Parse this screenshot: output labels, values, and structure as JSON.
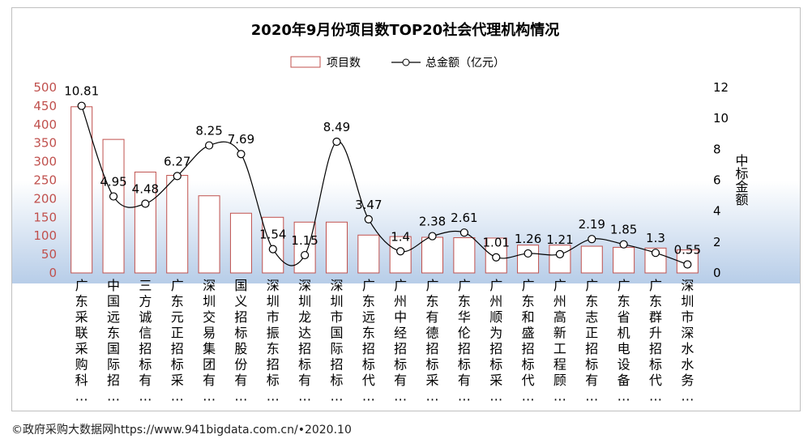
{
  "chart_data": {
    "type": "bar-line",
    "title": "2020年9月份项目数TOP20社会代理机构情况",
    "legend": {
      "position": "top-center",
      "bar_label": "项目数",
      "line_label": "总金额（亿元）"
    },
    "y_left": {
      "min": 0,
      "max": 500,
      "ticks": [
        0,
        50,
        100,
        150,
        200,
        250,
        300,
        350,
        400,
        450,
        500
      ],
      "color": "#c0504d"
    },
    "y_right": {
      "min": 0,
      "max": 12,
      "ticks": [
        0,
        2,
        4,
        6,
        8,
        10,
        12
      ],
      "label": "中标金额"
    },
    "categories": [
      "广东采联采购科…",
      "中国远东国际招…",
      "三方诚信招标有…",
      "广东元正招标采…",
      "深圳交易集团有…",
      "国义招标股份有…",
      "深圳市振东招标…",
      "深圳龙达招标有…",
      "深圳市国际招标…",
      "广东远东招标代…",
      "广州中经招标有…",
      "广东有德招标采…",
      "广东华伦招标有…",
      "广州顺为招标采…",
      "广东和盛招标代…",
      "广州高新工程顾…",
      "广东志正招标有…",
      "广东省机电设备…",
      "广东群升招标代…",
      "深圳市深水水务…"
    ],
    "series": [
      {
        "name": "项目数",
        "kind": "bar",
        "values": [
          448,
          360,
          272,
          263,
          208,
          161,
          150,
          137,
          137,
          102,
          98,
          96,
          95,
          94,
          75,
          75,
          72,
          69,
          67,
          62
        ]
      },
      {
        "name": "总金额（亿元）",
        "kind": "line",
        "axis": "right",
        "values": [
          10.81,
          4.95,
          4.48,
          6.27,
          8.25,
          7.69,
          1.54,
          1.15,
          8.49,
          3.47,
          1.4,
          2.38,
          2.61,
          1.01,
          1.26,
          1.21,
          2.19,
          1.85,
          1.3,
          0.55
        ],
        "labels": [
          "10.81",
          "4.95",
          "4.48",
          "6.27",
          "8.25",
          "7.69",
          "1.54",
          "1.15",
          "8.49",
          "3.47",
          "1.4",
          "2.38",
          "2.61",
          "1.01",
          "1.26",
          "1.21",
          "2.19",
          "1.85",
          "1.3",
          "0.55"
        ]
      }
    ],
    "colors": {
      "bar_stroke": "#c0504d",
      "bar_fill": "#ffffff",
      "line": "#000000",
      "gradient_top": "#ffffff",
      "gradient_bottom": "#b7cde8"
    }
  },
  "footer": "©政府采购大数据网https://www.941bigdata.com.cn/•2020.10"
}
